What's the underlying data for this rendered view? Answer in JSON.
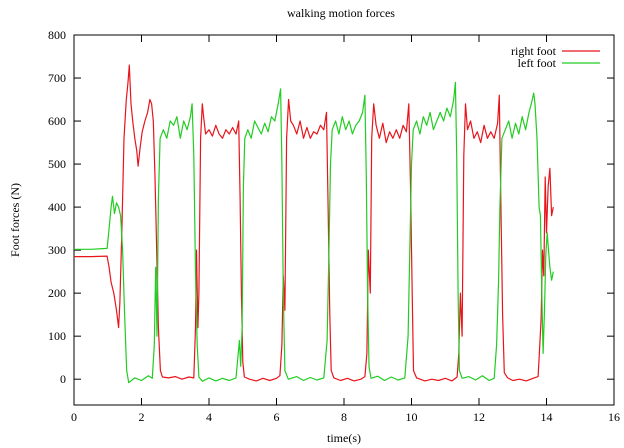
{
  "chart_data": {
    "type": "line",
    "title": "walking motion forces",
    "xlabel": "time(s)",
    "ylabel": "Foot forces (N)",
    "xlim": [
      0,
      16
    ],
    "ylim": [
      -60,
      800
    ],
    "x_ticks": [
      0,
      2,
      4,
      6,
      8,
      10,
      12,
      14,
      16
    ],
    "y_ticks": [
      0,
      100,
      200,
      300,
      400,
      500,
      600,
      700,
      800
    ],
    "grid": false,
    "legend_position": "top-right",
    "series": [
      {
        "name": "right foot",
        "color": "#e8141b",
        "points": [
          [
            0.0,
            285
          ],
          [
            0.5,
            285
          ],
          [
            0.98,
            286
          ],
          [
            1.04,
            260
          ],
          [
            1.1,
            225
          ],
          [
            1.18,
            200
          ],
          [
            1.26,
            160
          ],
          [
            1.32,
            120
          ],
          [
            1.36,
            180
          ],
          [
            1.42,
            350
          ],
          [
            1.48,
            560
          ],
          [
            1.55,
            650
          ],
          [
            1.6,
            690
          ],
          [
            1.64,
            730
          ],
          [
            1.69,
            640
          ],
          [
            1.74,
            600
          ],
          [
            1.8,
            560
          ],
          [
            1.86,
            530
          ],
          [
            1.9,
            495
          ],
          [
            1.96,
            540
          ],
          [
            2.02,
            575
          ],
          [
            2.1,
            600
          ],
          [
            2.18,
            620
          ],
          [
            2.25,
            650
          ],
          [
            2.3,
            640
          ],
          [
            2.35,
            600
          ],
          [
            2.4,
            470
          ],
          [
            2.45,
            300
          ],
          [
            2.5,
            120
          ],
          [
            2.56,
            20
          ],
          [
            2.62,
            5
          ],
          [
            2.8,
            3
          ],
          [
            3.0,
            6
          ],
          [
            3.2,
            0
          ],
          [
            3.4,
            5
          ],
          [
            3.55,
            3
          ],
          [
            3.6,
            120
          ],
          [
            3.63,
            300
          ],
          [
            3.67,
            120
          ],
          [
            3.7,
            200
          ],
          [
            3.75,
            560
          ],
          [
            3.8,
            640
          ],
          [
            3.84,
            610
          ],
          [
            3.9,
            570
          ],
          [
            4.0,
            580
          ],
          [
            4.1,
            565
          ],
          [
            4.2,
            590
          ],
          [
            4.3,
            570
          ],
          [
            4.4,
            560
          ],
          [
            4.5,
            580
          ],
          [
            4.6,
            570
          ],
          [
            4.7,
            585
          ],
          [
            4.8,
            570
          ],
          [
            4.88,
            600
          ],
          [
            4.92,
            420
          ],
          [
            4.96,
            200
          ],
          [
            5.0,
            40
          ],
          [
            5.05,
            5
          ],
          [
            5.2,
            0
          ],
          [
            5.4,
            -4
          ],
          [
            5.6,
            2
          ],
          [
            5.8,
            -3
          ],
          [
            6.0,
            2
          ],
          [
            6.1,
            8
          ],
          [
            6.16,
            80
          ],
          [
            6.2,
            240
          ],
          [
            6.25,
            160
          ],
          [
            6.3,
            560
          ],
          [
            6.36,
            650
          ],
          [
            6.42,
            600
          ],
          [
            6.5,
            590
          ],
          [
            6.6,
            570
          ],
          [
            6.7,
            600
          ],
          [
            6.8,
            560
          ],
          [
            6.9,
            585
          ],
          [
            7.0,
            560
          ],
          [
            7.1,
            575
          ],
          [
            7.2,
            570
          ],
          [
            7.3,
            590
          ],
          [
            7.4,
            580
          ],
          [
            7.48,
            620
          ],
          [
            7.53,
            400
          ],
          [
            7.58,
            150
          ],
          [
            7.62,
            20
          ],
          [
            7.7,
            3
          ],
          [
            7.9,
            -3
          ],
          [
            8.1,
            2
          ],
          [
            8.3,
            -4
          ],
          [
            8.5,
            0
          ],
          [
            8.62,
            6
          ],
          [
            8.68,
            60
          ],
          [
            8.72,
            300
          ],
          [
            8.78,
            200
          ],
          [
            8.82,
            560
          ],
          [
            8.88,
            640
          ],
          [
            8.95,
            590
          ],
          [
            9.05,
            560
          ],
          [
            9.15,
            595
          ],
          [
            9.25,
            550
          ],
          [
            9.35,
            575
          ],
          [
            9.45,
            560
          ],
          [
            9.55,
            580
          ],
          [
            9.65,
            560
          ],
          [
            9.75,
            590
          ],
          [
            9.85,
            575
          ],
          [
            9.92,
            640
          ],
          [
            9.97,
            450
          ],
          [
            10.02,
            200
          ],
          [
            10.06,
            20
          ],
          [
            10.15,
            3
          ],
          [
            10.4,
            -4
          ],
          [
            10.6,
            0
          ],
          [
            10.8,
            -3
          ],
          [
            11.0,
            2
          ],
          [
            11.2,
            -4
          ],
          [
            11.35,
            5
          ],
          [
            11.4,
            60
          ],
          [
            11.45,
            200
          ],
          [
            11.5,
            100
          ],
          [
            11.55,
            520
          ],
          [
            11.6,
            640
          ],
          [
            11.66,
            580
          ],
          [
            11.75,
            600
          ],
          [
            11.85,
            560
          ],
          [
            11.95,
            575
          ],
          [
            12.05,
            550
          ],
          [
            12.15,
            590
          ],
          [
            12.25,
            560
          ],
          [
            12.35,
            575
          ],
          [
            12.45,
            560
          ],
          [
            12.55,
            595
          ],
          [
            12.6,
            660
          ],
          [
            12.64,
            450
          ],
          [
            12.7,
            150
          ],
          [
            12.75,
            15
          ],
          [
            12.85,
            3
          ],
          [
            13.0,
            -3
          ],
          [
            13.2,
            0
          ],
          [
            13.4,
            -4
          ],
          [
            13.6,
            2
          ],
          [
            13.75,
            6
          ],
          [
            13.8,
            80
          ],
          [
            13.84,
            140
          ],
          [
            13.88,
            300
          ],
          [
            13.92,
            240
          ],
          [
            13.96,
            470
          ],
          [
            14.0,
            340
          ],
          [
            14.05,
            450
          ],
          [
            14.1,
            490
          ],
          [
            14.15,
            380
          ],
          [
            14.2,
            400
          ]
        ]
      },
      {
        "name": "left foot",
        "color": "#22cc22",
        "points": [
          [
            0.0,
            302
          ],
          [
            0.5,
            302
          ],
          [
            0.98,
            304
          ],
          [
            1.04,
            350
          ],
          [
            1.1,
            400
          ],
          [
            1.14,
            425
          ],
          [
            1.2,
            385
          ],
          [
            1.26,
            410
          ],
          [
            1.32,
            400
          ],
          [
            1.38,
            380
          ],
          [
            1.44,
            300
          ],
          [
            1.5,
            150
          ],
          [
            1.56,
            20
          ],
          [
            1.62,
            -8
          ],
          [
            1.8,
            3
          ],
          [
            2.0,
            -3
          ],
          [
            2.2,
            8
          ],
          [
            2.32,
            2
          ],
          [
            2.38,
            80
          ],
          [
            2.42,
            260
          ],
          [
            2.46,
            100
          ],
          [
            2.5,
            420
          ],
          [
            2.55,
            560
          ],
          [
            2.65,
            580
          ],
          [
            2.75,
            560
          ],
          [
            2.85,
            600
          ],
          [
            2.95,
            590
          ],
          [
            3.05,
            610
          ],
          [
            3.15,
            560
          ],
          [
            3.25,
            600
          ],
          [
            3.35,
            580
          ],
          [
            3.45,
            610
          ],
          [
            3.5,
            640
          ],
          [
            3.55,
            520
          ],
          [
            3.6,
            250
          ],
          [
            3.65,
            80
          ],
          [
            3.7,
            5
          ],
          [
            3.8,
            -5
          ],
          [
            4.0,
            3
          ],
          [
            4.2,
            -4
          ],
          [
            4.4,
            2
          ],
          [
            4.6,
            -3
          ],
          [
            4.8,
            3
          ],
          [
            4.9,
            90
          ],
          [
            4.94,
            30
          ],
          [
            4.98,
            120
          ],
          [
            5.02,
            450
          ],
          [
            5.06,
            560
          ],
          [
            5.15,
            580
          ],
          [
            5.25,
            560
          ],
          [
            5.35,
            600
          ],
          [
            5.45,
            585
          ],
          [
            5.55,
            570
          ],
          [
            5.65,
            595
          ],
          [
            5.75,
            575
          ],
          [
            5.85,
            610
          ],
          [
            5.95,
            600
          ],
          [
            6.05,
            640
          ],
          [
            6.12,
            675
          ],
          [
            6.16,
            500
          ],
          [
            6.2,
            200
          ],
          [
            6.25,
            20
          ],
          [
            6.35,
            0
          ],
          [
            6.6,
            6
          ],
          [
            6.8,
            -3
          ],
          [
            7.0,
            4
          ],
          [
            7.2,
            -2
          ],
          [
            7.4,
            3
          ],
          [
            7.5,
            90
          ],
          [
            7.55,
            280
          ],
          [
            7.6,
            500
          ],
          [
            7.65,
            580
          ],
          [
            7.75,
            600
          ],
          [
            7.85,
            570
          ],
          [
            7.95,
            610
          ],
          [
            8.05,
            580
          ],
          [
            8.15,
            600
          ],
          [
            8.25,
            570
          ],
          [
            8.35,
            590
          ],
          [
            8.45,
            600
          ],
          [
            8.55,
            620
          ],
          [
            8.62,
            660
          ],
          [
            8.66,
            470
          ],
          [
            8.7,
            200
          ],
          [
            8.74,
            30
          ],
          [
            8.8,
            2
          ],
          [
            9.0,
            7
          ],
          [
            9.2,
            -3
          ],
          [
            9.4,
            5
          ],
          [
            9.6,
            -2
          ],
          [
            9.8,
            3
          ],
          [
            9.9,
            100
          ],
          [
            9.95,
            300
          ],
          [
            10.0,
            500
          ],
          [
            10.05,
            580
          ],
          [
            10.15,
            600
          ],
          [
            10.25,
            570
          ],
          [
            10.35,
            610
          ],
          [
            10.45,
            590
          ],
          [
            10.55,
            620
          ],
          [
            10.65,
            580
          ],
          [
            10.75,
            600
          ],
          [
            10.85,
            620
          ],
          [
            10.95,
            600
          ],
          [
            11.05,
            630
          ],
          [
            11.15,
            610
          ],
          [
            11.25,
            650
          ],
          [
            11.3,
            690
          ],
          [
            11.34,
            520
          ],
          [
            11.38,
            200
          ],
          [
            11.42,
            20
          ],
          [
            11.5,
            2
          ],
          [
            11.7,
            6
          ],
          [
            11.9,
            -2
          ],
          [
            12.1,
            8
          ],
          [
            12.3,
            -3
          ],
          [
            12.45,
            2
          ],
          [
            12.52,
            80
          ],
          [
            12.58,
            230
          ],
          [
            12.62,
            400
          ],
          [
            12.68,
            560
          ],
          [
            12.78,
            580
          ],
          [
            12.88,
            600
          ],
          [
            12.98,
            560
          ],
          [
            13.08,
            595
          ],
          [
            13.18,
            570
          ],
          [
            13.28,
            610
          ],
          [
            13.38,
            580
          ],
          [
            13.48,
            620
          ],
          [
            13.55,
            640
          ],
          [
            13.62,
            665
          ],
          [
            13.66,
            640
          ],
          [
            13.72,
            560
          ],
          [
            13.78,
            400
          ],
          [
            13.82,
            380
          ],
          [
            13.86,
            200
          ],
          [
            13.9,
            60
          ],
          [
            13.94,
            160
          ],
          [
            13.98,
            290
          ],
          [
            14.02,
            340
          ],
          [
            14.06,
            300
          ],
          [
            14.1,
            260
          ],
          [
            14.15,
            230
          ],
          [
            14.2,
            250
          ]
        ]
      }
    ]
  }
}
